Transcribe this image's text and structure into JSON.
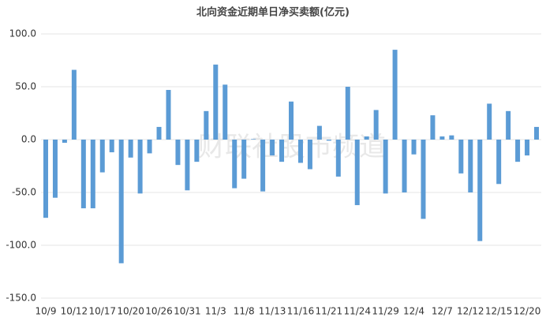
{
  "chart_data": {
    "type": "bar",
    "title": "北向资金近期单日净买卖额(亿元)",
    "watermark": "财联社股市频道",
    "categories": [
      "10/9",
      null,
      null,
      "10/12",
      null,
      null,
      "10/17",
      null,
      null,
      "10/20",
      null,
      null,
      "10/26",
      null,
      null,
      "10/31",
      null,
      null,
      "11/3",
      null,
      null,
      "11/8",
      null,
      null,
      "11/13",
      null,
      null,
      "11/16",
      null,
      null,
      "11/21",
      null,
      null,
      "11/24",
      null,
      null,
      "11/29",
      null,
      null,
      "12/4",
      null,
      null,
      "12/7",
      null,
      null,
      "12/12",
      null,
      null,
      "12/15",
      null,
      null,
      "12/20",
      null
    ],
    "values": [
      -74,
      -55,
      -3,
      66,
      -65,
      -65,
      -31,
      -12,
      -117,
      -17,
      -51,
      -13,
      12,
      47,
      -24,
      -48,
      -21,
      27,
      71,
      52,
      -46,
      -37,
      0.5,
      -49,
      -15,
      -21,
      36,
      -22,
      -28,
      13,
      -1,
      -35,
      50,
      -62,
      3,
      28,
      -51,
      85,
      -50,
      -14,
      -75,
      23,
      3,
      4,
      -32,
      -50,
      -96,
      34,
      -42,
      27,
      -21,
      -15,
      12
    ],
    "color": "#5b9bd5",
    "ylim": [
      -150,
      100
    ],
    "yticks": [
      {
        "value": -150,
        "label": "-150.0"
      },
      {
        "value": -100,
        "label": "-100.0"
      },
      {
        "value": -50,
        "label": "-50.0"
      },
      {
        "value": 0,
        "label": "0.0"
      },
      {
        "value": 50,
        "label": "50.0"
      },
      {
        "value": 100,
        "label": "100.0"
      }
    ],
    "grid": true
  }
}
